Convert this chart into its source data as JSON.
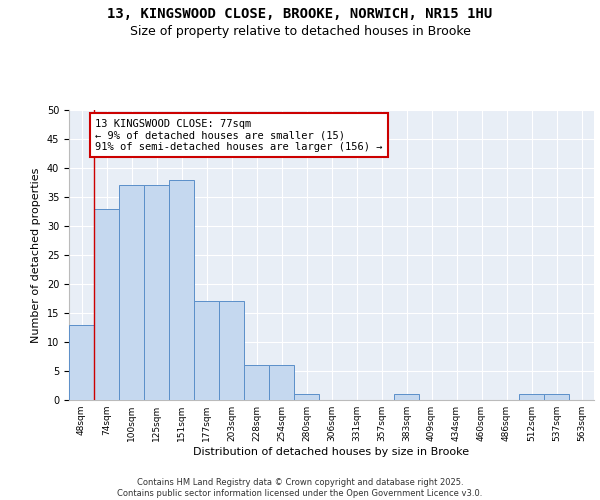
{
  "title1": "13, KINGSWOOD CLOSE, BROOKE, NORWICH, NR15 1HU",
  "title2": "Size of property relative to detached houses in Brooke",
  "xlabel": "Distribution of detached houses by size in Brooke",
  "ylabel": "Number of detached properties",
  "categories": [
    "48sqm",
    "74sqm",
    "100sqm",
    "125sqm",
    "151sqm",
    "177sqm",
    "203sqm",
    "228sqm",
    "254sqm",
    "280sqm",
    "306sqm",
    "331sqm",
    "357sqm",
    "383sqm",
    "409sqm",
    "434sqm",
    "460sqm",
    "486sqm",
    "512sqm",
    "537sqm",
    "563sqm"
  ],
  "values": [
    13,
    33,
    37,
    37,
    38,
    17,
    17,
    6,
    6,
    1,
    0,
    0,
    0,
    1,
    0,
    0,
    0,
    0,
    1,
    1,
    0
  ],
  "bar_color": "#c5d8ef",
  "bar_edge_color": "#5b8fc9",
  "bg_color": "#e8eef6",
  "annotation_text": "13 KINGSWOOD CLOSE: 77sqm\n← 9% of detached houses are smaller (15)\n91% of semi-detached houses are larger (156) →",
  "annotation_box_color": "#ffffff",
  "annotation_box_edge": "#cc0000",
  "vline_x": 0.5,
  "vline_color": "#cc0000",
  "ylim": [
    0,
    50
  ],
  "yticks": [
    0,
    5,
    10,
    15,
    20,
    25,
    30,
    35,
    40,
    45,
    50
  ],
  "footer": "Contains HM Land Registry data © Crown copyright and database right 2025.\nContains public sector information licensed under the Open Government Licence v3.0.",
  "title_fontsize": 10,
  "subtitle_fontsize": 9,
  "tick_fontsize": 6.5,
  "ylabel_fontsize": 8,
  "xlabel_fontsize": 8,
  "annotation_fontsize": 7.5,
  "footer_fontsize": 6.0
}
